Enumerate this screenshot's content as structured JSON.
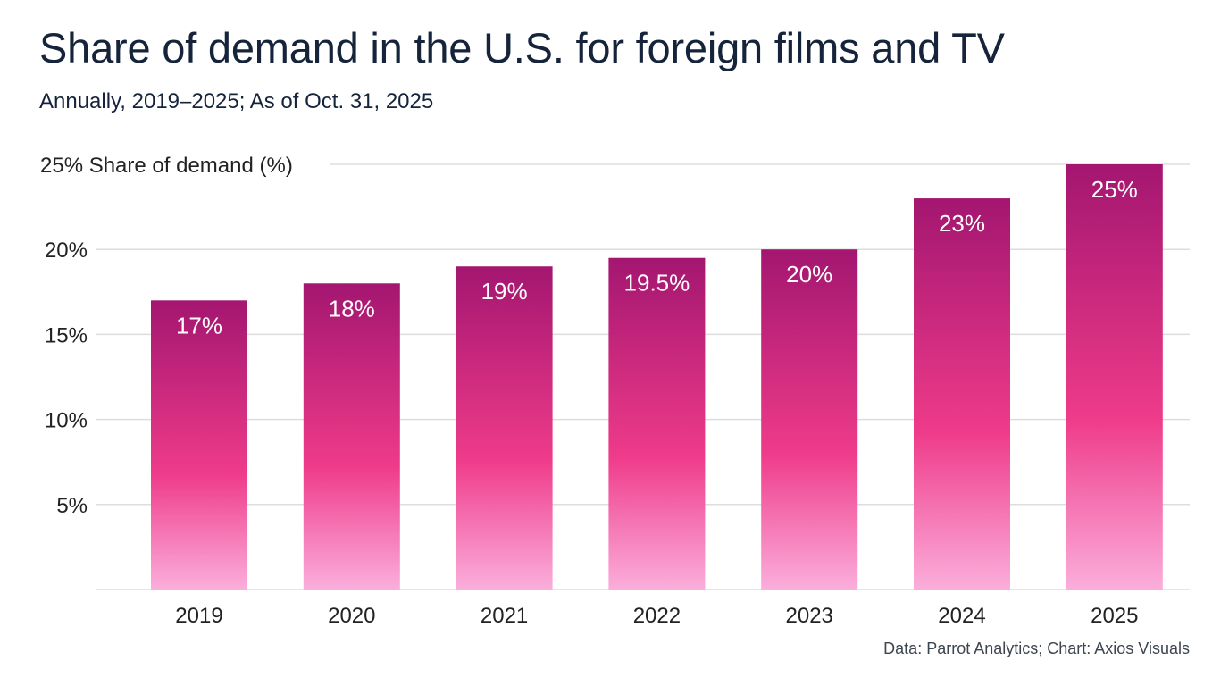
{
  "header": {
    "title": "Share of demand in the U.S. for foreign films and TV",
    "subtitle": "Annually, 2019–2025; As of Oct. 31, 2025"
  },
  "footer": {
    "source": "Data: Parrot Analytics; Chart: Axios Visuals"
  },
  "colors": {
    "bar_top": "#a31670",
    "bar_mid": "#ef3b8a",
    "bar_bottom": "#fbaedb",
    "grid": "#dddddd"
  },
  "chart_data": {
    "type": "bar",
    "title": "Share of demand in the U.S. for foreign films and TV",
    "subtitle": "Annually, 2019–2025; As of Oct. 31, 2025",
    "ylabel": "Share of demand (%)",
    "categories": [
      "2019",
      "2020",
      "2021",
      "2022",
      "2023",
      "2024",
      "2025"
    ],
    "values": [
      17,
      18,
      19,
      19.5,
      20,
      23,
      25
    ],
    "value_labels": [
      "17%",
      "18%",
      "19%",
      "19.5%",
      "20%",
      "23%",
      "25%"
    ],
    "yticks": [
      5,
      10,
      15,
      20,
      25
    ],
    "ytick_labels": [
      "5%",
      "10%",
      "15%",
      "20%",
      "25%"
    ],
    "ylim": [
      0,
      25
    ],
    "grid": true
  }
}
